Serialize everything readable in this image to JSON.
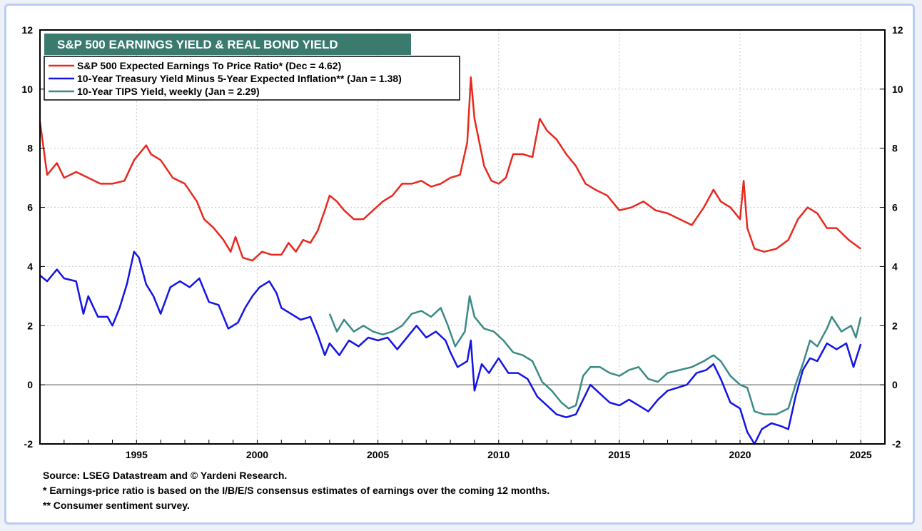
{
  "chart_data": {
    "type": "line",
    "title": "S&P 500 EARNINGS YIELD &  REAL BOND YIELD",
    "xlabel": "",
    "ylabel": "",
    "xlim": [
      1991.0,
      2026.0
    ],
    "ylim": [
      -2,
      12
    ],
    "y_ticks": [
      -2,
      0,
      2,
      4,
      6,
      8,
      10,
      12
    ],
    "x_ticks": [
      1995,
      2000,
      2005,
      2010,
      2015,
      2020,
      2025
    ],
    "grid": true,
    "legend_position": "top-left",
    "series": [
      {
        "name": "S&P 500 Expected Earnings To Price Ratio* (Dec = 4.62)",
        "color": "#e8291f",
        "points": [
          [
            1991.0,
            8.9
          ],
          [
            1991.3,
            7.1
          ],
          [
            1991.7,
            7.5
          ],
          [
            1992.0,
            7.0
          ],
          [
            1992.5,
            7.2
          ],
          [
            1993.0,
            7.0
          ],
          [
            1993.5,
            6.8
          ],
          [
            1994.0,
            6.8
          ],
          [
            1994.5,
            6.9
          ],
          [
            1994.9,
            7.6
          ],
          [
            1995.2,
            7.9
          ],
          [
            1995.4,
            8.1
          ],
          [
            1995.6,
            7.8
          ],
          [
            1996.0,
            7.6
          ],
          [
            1996.5,
            7.0
          ],
          [
            1997.0,
            6.8
          ],
          [
            1997.5,
            6.2
          ],
          [
            1997.8,
            5.6
          ],
          [
            1998.2,
            5.3
          ],
          [
            1998.6,
            4.9
          ],
          [
            1998.9,
            4.5
          ],
          [
            1999.1,
            5.0
          ],
          [
            1999.4,
            4.3
          ],
          [
            1999.8,
            4.2
          ],
          [
            2000.2,
            4.5
          ],
          [
            2000.6,
            4.4
          ],
          [
            2001.0,
            4.4
          ],
          [
            2001.3,
            4.8
          ],
          [
            2001.6,
            4.5
          ],
          [
            2001.9,
            4.9
          ],
          [
            2002.2,
            4.8
          ],
          [
            2002.5,
            5.2
          ],
          [
            2002.8,
            5.9
          ],
          [
            2003.0,
            6.4
          ],
          [
            2003.3,
            6.2
          ],
          [
            2003.6,
            5.9
          ],
          [
            2004.0,
            5.6
          ],
          [
            2004.4,
            5.6
          ],
          [
            2004.8,
            5.9
          ],
          [
            2005.2,
            6.2
          ],
          [
            2005.6,
            6.4
          ],
          [
            2006.0,
            6.8
          ],
          [
            2006.4,
            6.8
          ],
          [
            2006.8,
            6.9
          ],
          [
            2007.2,
            6.7
          ],
          [
            2007.6,
            6.8
          ],
          [
            2008.0,
            7.0
          ],
          [
            2008.4,
            7.1
          ],
          [
            2008.7,
            8.2
          ],
          [
            2008.85,
            10.4
          ],
          [
            2009.0,
            9.0
          ],
          [
            2009.2,
            8.2
          ],
          [
            2009.4,
            7.4
          ],
          [
            2009.7,
            6.9
          ],
          [
            2010.0,
            6.8
          ],
          [
            2010.3,
            7.0
          ],
          [
            2010.6,
            7.8
          ],
          [
            2011.0,
            7.8
          ],
          [
            2011.4,
            7.7
          ],
          [
            2011.7,
            9.0
          ],
          [
            2012.0,
            8.6
          ],
          [
            2012.4,
            8.3
          ],
          [
            2012.8,
            7.8
          ],
          [
            2013.2,
            7.4
          ],
          [
            2013.6,
            6.8
          ],
          [
            2014.0,
            6.6
          ],
          [
            2014.5,
            6.4
          ],
          [
            2015.0,
            5.9
          ],
          [
            2015.5,
            6.0
          ],
          [
            2016.0,
            6.2
          ],
          [
            2016.5,
            5.9
          ],
          [
            2017.0,
            5.8
          ],
          [
            2017.5,
            5.6
          ],
          [
            2018.0,
            5.4
          ],
          [
            2018.5,
            6.0
          ],
          [
            2018.9,
            6.6
          ],
          [
            2019.2,
            6.2
          ],
          [
            2019.6,
            6.0
          ],
          [
            2020.0,
            5.6
          ],
          [
            2020.15,
            6.9
          ],
          [
            2020.3,
            5.3
          ],
          [
            2020.6,
            4.6
          ],
          [
            2021.0,
            4.5
          ],
          [
            2021.5,
            4.6
          ],
          [
            2022.0,
            4.9
          ],
          [
            2022.4,
            5.6
          ],
          [
            2022.8,
            6.0
          ],
          [
            2023.2,
            5.8
          ],
          [
            2023.6,
            5.3
          ],
          [
            2024.0,
            5.3
          ],
          [
            2024.5,
            4.9
          ],
          [
            2025.0,
            4.6
          ]
        ]
      },
      {
        "name": "10-Year Treasury Yield Minus 5-Year Expected Inflation** (Jan = 1.38)",
        "color": "#1414e6",
        "points": [
          [
            1991.0,
            3.7
          ],
          [
            1991.3,
            3.5
          ],
          [
            1991.7,
            3.9
          ],
          [
            1992.0,
            3.6
          ],
          [
            1992.5,
            3.5
          ],
          [
            1992.8,
            2.4
          ],
          [
            1993.0,
            3.0
          ],
          [
            1993.4,
            2.3
          ],
          [
            1993.8,
            2.3
          ],
          [
            1994.0,
            2.0
          ],
          [
            1994.3,
            2.6
          ],
          [
            1994.6,
            3.4
          ],
          [
            1994.9,
            4.5
          ],
          [
            1995.1,
            4.3
          ],
          [
            1995.4,
            3.4
          ],
          [
            1995.7,
            3.0
          ],
          [
            1996.0,
            2.4
          ],
          [
            1996.4,
            3.3
          ],
          [
            1996.8,
            3.5
          ],
          [
            1997.2,
            3.3
          ],
          [
            1997.6,
            3.6
          ],
          [
            1998.0,
            2.8
          ],
          [
            1998.4,
            2.7
          ],
          [
            1998.8,
            1.9
          ],
          [
            1999.2,
            2.1
          ],
          [
            1999.5,
            2.6
          ],
          [
            1999.8,
            3.0
          ],
          [
            2000.1,
            3.3
          ],
          [
            2000.5,
            3.5
          ],
          [
            2000.8,
            3.1
          ],
          [
            2001.0,
            2.6
          ],
          [
            2001.4,
            2.4
          ],
          [
            2001.8,
            2.2
          ],
          [
            2002.2,
            2.3
          ],
          [
            2002.5,
            1.7
          ],
          [
            2002.8,
            1.0
          ],
          [
            2003.0,
            1.4
          ],
          [
            2003.4,
            1.0
          ],
          [
            2003.8,
            1.5
          ],
          [
            2004.2,
            1.3
          ],
          [
            2004.6,
            1.6
          ],
          [
            2005.0,
            1.5
          ],
          [
            2005.4,
            1.6
          ],
          [
            2005.8,
            1.2
          ],
          [
            2006.2,
            1.6
          ],
          [
            2006.6,
            2.0
          ],
          [
            2007.0,
            1.6
          ],
          [
            2007.4,
            1.8
          ],
          [
            2007.8,
            1.5
          ],
          [
            2008.0,
            1.1
          ],
          [
            2008.3,
            0.6
          ],
          [
            2008.7,
            0.8
          ],
          [
            2008.85,
            1.5
          ],
          [
            2009.0,
            -0.2
          ],
          [
            2009.3,
            0.7
          ],
          [
            2009.6,
            0.4
          ],
          [
            2010.0,
            0.9
          ],
          [
            2010.4,
            0.4
          ],
          [
            2010.8,
            0.4
          ],
          [
            2011.2,
            0.2
          ],
          [
            2011.6,
            -0.4
          ],
          [
            2012.0,
            -0.7
          ],
          [
            2012.4,
            -1.0
          ],
          [
            2012.8,
            -1.1
          ],
          [
            2013.2,
            -1.0
          ],
          [
            2013.5,
            -0.5
          ],
          [
            2013.8,
            0.0
          ],
          [
            2014.2,
            -0.3
          ],
          [
            2014.6,
            -0.6
          ],
          [
            2015.0,
            -0.7
          ],
          [
            2015.4,
            -0.5
          ],
          [
            2015.8,
            -0.7
          ],
          [
            2016.2,
            -0.9
          ],
          [
            2016.6,
            -0.5
          ],
          [
            2017.0,
            -0.2
          ],
          [
            2017.4,
            -0.1
          ],
          [
            2017.8,
            0.0
          ],
          [
            2018.2,
            0.4
          ],
          [
            2018.6,
            0.5
          ],
          [
            2018.9,
            0.7
          ],
          [
            2019.2,
            0.2
          ],
          [
            2019.6,
            -0.6
          ],
          [
            2020.0,
            -0.8
          ],
          [
            2020.3,
            -1.6
          ],
          [
            2020.6,
            -2.0
          ],
          [
            2020.9,
            -1.5
          ],
          [
            2021.3,
            -1.3
          ],
          [
            2021.7,
            -1.4
          ],
          [
            2022.0,
            -1.5
          ],
          [
            2022.3,
            -0.4
          ],
          [
            2022.6,
            0.5
          ],
          [
            2022.9,
            0.9
          ],
          [
            2023.2,
            0.8
          ],
          [
            2023.6,
            1.4
          ],
          [
            2024.0,
            1.2
          ],
          [
            2024.4,
            1.4
          ],
          [
            2024.7,
            0.6
          ],
          [
            2025.0,
            1.38
          ]
        ]
      },
      {
        "name": "10-Year TIPS Yield, weekly (Jan = 2.29)",
        "color": "#3b8a86",
        "points": [
          [
            2003.0,
            2.4
          ],
          [
            2003.3,
            1.8
          ],
          [
            2003.6,
            2.2
          ],
          [
            2004.0,
            1.8
          ],
          [
            2004.4,
            2.0
          ],
          [
            2004.8,
            1.8
          ],
          [
            2005.2,
            1.7
          ],
          [
            2005.6,
            1.8
          ],
          [
            2006.0,
            2.0
          ],
          [
            2006.4,
            2.4
          ],
          [
            2006.8,
            2.5
          ],
          [
            2007.2,
            2.3
          ],
          [
            2007.6,
            2.6
          ],
          [
            2007.9,
            2.0
          ],
          [
            2008.2,
            1.3
          ],
          [
            2008.6,
            1.8
          ],
          [
            2008.8,
            3.0
          ],
          [
            2009.0,
            2.3
          ],
          [
            2009.4,
            1.9
          ],
          [
            2009.8,
            1.8
          ],
          [
            2010.2,
            1.5
          ],
          [
            2010.6,
            1.1
          ],
          [
            2011.0,
            1.0
          ],
          [
            2011.4,
            0.8
          ],
          [
            2011.8,
            0.1
          ],
          [
            2012.2,
            -0.2
          ],
          [
            2012.6,
            -0.6
          ],
          [
            2012.9,
            -0.8
          ],
          [
            2013.2,
            -0.7
          ],
          [
            2013.5,
            0.3
          ],
          [
            2013.8,
            0.6
          ],
          [
            2014.2,
            0.6
          ],
          [
            2014.6,
            0.4
          ],
          [
            2015.0,
            0.3
          ],
          [
            2015.4,
            0.5
          ],
          [
            2015.8,
            0.6
          ],
          [
            2016.2,
            0.2
          ],
          [
            2016.6,
            0.1
          ],
          [
            2017.0,
            0.4
          ],
          [
            2017.5,
            0.5
          ],
          [
            2018.0,
            0.6
          ],
          [
            2018.5,
            0.8
          ],
          [
            2018.9,
            1.0
          ],
          [
            2019.2,
            0.8
          ],
          [
            2019.6,
            0.3
          ],
          [
            2020.0,
            0.0
          ],
          [
            2020.3,
            -0.1
          ],
          [
            2020.6,
            -0.9
          ],
          [
            2021.0,
            -1.0
          ],
          [
            2021.5,
            -1.0
          ],
          [
            2022.0,
            -0.8
          ],
          [
            2022.3,
            0.0
          ],
          [
            2022.6,
            0.7
          ],
          [
            2022.9,
            1.5
          ],
          [
            2023.2,
            1.3
          ],
          [
            2023.6,
            1.9
          ],
          [
            2023.8,
            2.3
          ],
          [
            2024.2,
            1.8
          ],
          [
            2024.6,
            2.0
          ],
          [
            2024.8,
            1.6
          ],
          [
            2025.0,
            2.29
          ]
        ]
      }
    ]
  },
  "footnotes": {
    "source": "Source: LSEG Datastream and © Yardeni Research.",
    "note1": "* Earnings-price ratio is based on the I/B/E/S consensus estimates of earnings over the coming 12 months.",
    "note2": "** Consumer sentiment survey."
  }
}
